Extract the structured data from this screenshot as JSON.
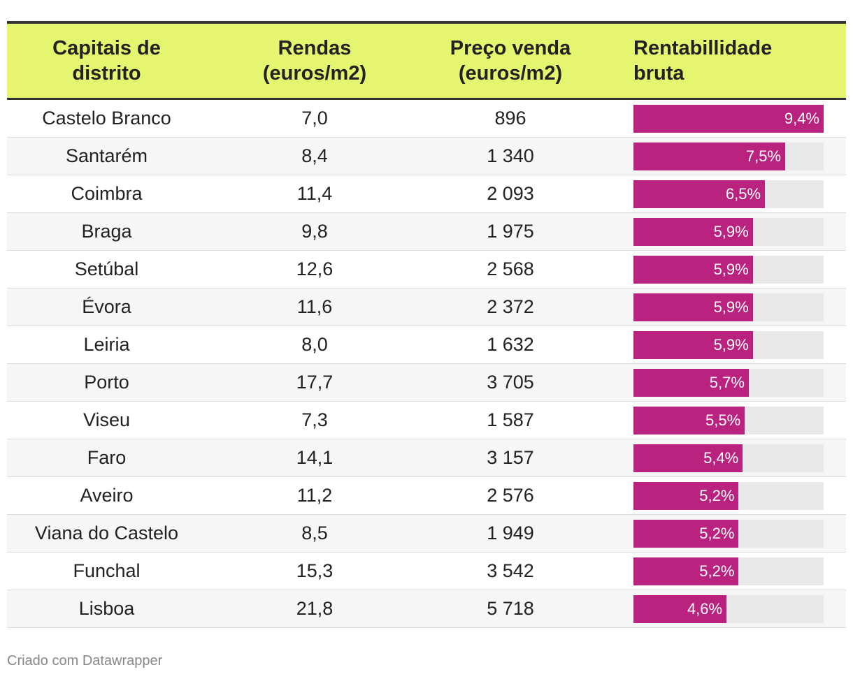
{
  "colors": {
    "header_bg": "#e5f56f",
    "bar": "#b9237f",
    "bar_track": "#e9e9e9"
  },
  "table": {
    "headers": [
      "Capitais de\ndistrito",
      "Rendas\n(euros/m2)",
      "Preço venda\n(euros/m2)",
      "Rentabillidade\nbruta"
    ],
    "bar_max": 9.4
  },
  "chart_data": {
    "type": "table",
    "columns": [
      "Capitais de distrito",
      "Rendas (euros/m2)",
      "Preço venda (euros/m2)",
      "Rentabillidade bruta"
    ],
    "rows": [
      {
        "city": "Castelo Branco",
        "rent": "7,0",
        "price": "896",
        "yield_label": "9,4%",
        "yield": 9.4
      },
      {
        "city": "Santarém",
        "rent": "8,4",
        "price": "1 340",
        "yield_label": "7,5%",
        "yield": 7.5
      },
      {
        "city": "Coimbra",
        "rent": "11,4",
        "price": "2 093",
        "yield_label": "6,5%",
        "yield": 6.5
      },
      {
        "city": "Braga",
        "rent": "9,8",
        "price": "1 975",
        "yield_label": "5,9%",
        "yield": 5.9
      },
      {
        "city": "Setúbal",
        "rent": "12,6",
        "price": "2 568",
        "yield_label": "5,9%",
        "yield": 5.9
      },
      {
        "city": "Évora",
        "rent": "11,6",
        "price": "2 372",
        "yield_label": "5,9%",
        "yield": 5.9
      },
      {
        "city": "Leiria",
        "rent": "8,0",
        "price": "1 632",
        "yield_label": "5,9%",
        "yield": 5.9
      },
      {
        "city": "Porto",
        "rent": "17,7",
        "price": "3 705",
        "yield_label": "5,7%",
        "yield": 5.7
      },
      {
        "city": "Viseu",
        "rent": "7,3",
        "price": "1 587",
        "yield_label": "5,5%",
        "yield": 5.5
      },
      {
        "city": "Faro",
        "rent": "14,1",
        "price": "3 157",
        "yield_label": "5,4%",
        "yield": 5.4
      },
      {
        "city": "Aveiro",
        "rent": "11,2",
        "price": "2 576",
        "yield_label": "5,2%",
        "yield": 5.2
      },
      {
        "city": "Viana do Castelo",
        "rent": "8,5",
        "price": "1 949",
        "yield_label": "5,2%",
        "yield": 5.2
      },
      {
        "city": "Funchal",
        "rent": "15,3",
        "price": "3 542",
        "yield_label": "5,2%",
        "yield": 5.2
      },
      {
        "city": "Lisboa",
        "rent": "21,8",
        "price": "5 718",
        "yield_label": "4,6%",
        "yield": 4.6
      }
    ]
  },
  "footer": {
    "credit": "Criado com Datawrapper"
  }
}
